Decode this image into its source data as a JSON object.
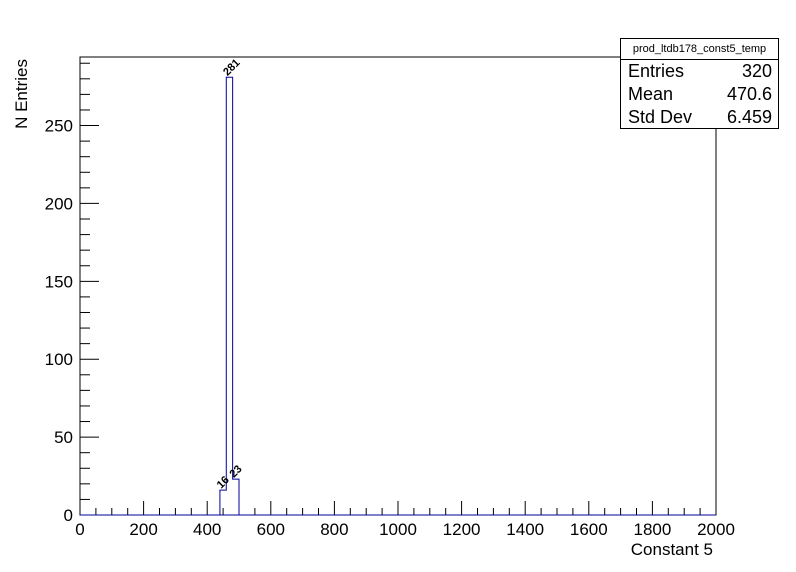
{
  "stats_box": {
    "title": "prod_ltdb178_const5_temp",
    "rows": [
      {
        "label": "Entries",
        "value": "320"
      },
      {
        "label": "Mean",
        "value": "470.6"
      },
      {
        "label": "Std Dev",
        "value": "6.459"
      }
    ]
  },
  "chart_data": {
    "type": "bar",
    "title": "",
    "xlabel": "Constant 5",
    "ylabel": "N Entries",
    "xlim": [
      0,
      2000
    ],
    "ylim": [
      0,
      294
    ],
    "x_ticks": [
      0,
      200,
      400,
      600,
      800,
      1000,
      1200,
      1400,
      1600,
      1800,
      2000
    ],
    "y_ticks": [
      0,
      50,
      100,
      150,
      200,
      250
    ],
    "bin_width": 20,
    "bins": [
      {
        "x0": 440,
        "x1": 460,
        "value": 16,
        "label": "16"
      },
      {
        "x0": 460,
        "x1": 480,
        "value": 281,
        "label": "281"
      },
      {
        "x0": 480,
        "x1": 500,
        "value": 23,
        "label": "23"
      }
    ],
    "line_color": "#000099",
    "grid": false,
    "legend": "none"
  }
}
